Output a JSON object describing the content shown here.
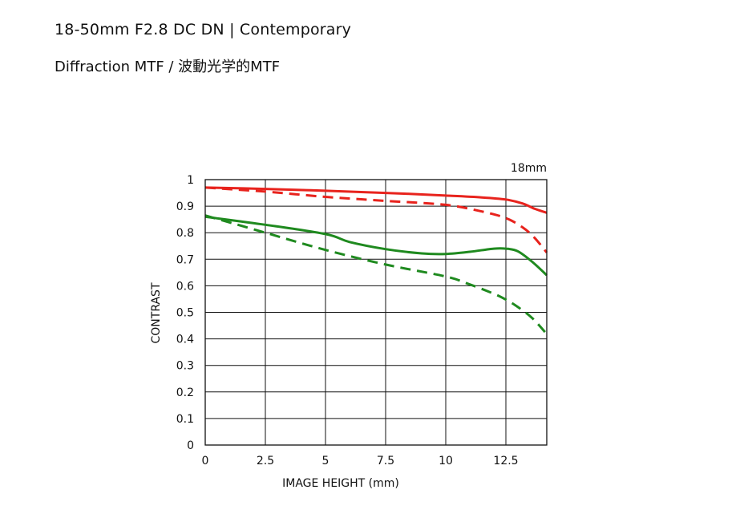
{
  "header": {
    "title": "18-50mm F2.8 DC DN | Contemporary",
    "subtitle": "Diffraction MTF / 波動光学的MTF"
  },
  "chart_data": {
    "type": "line",
    "focal_length_label": "18mm",
    "xlabel": "IMAGE HEIGHT (mm)",
    "ylabel": "CONTRAST",
    "xlim": [
      0,
      14.2
    ],
    "ylim": [
      0,
      1
    ],
    "x_ticks": [
      0,
      2.5,
      5,
      7.5,
      10,
      12.5
    ],
    "x_tick_labels": [
      "0",
      "2.5",
      "5",
      "7.5",
      "10",
      "12.5"
    ],
    "y_ticks": [
      0,
      0.1,
      0.2,
      0.3,
      0.4,
      0.5,
      0.6,
      0.7,
      0.8,
      0.9,
      1
    ],
    "y_tick_labels": [
      "0",
      "0.1",
      "0.2",
      "0.3",
      "0.4",
      "0.5",
      "0.6",
      "0.7",
      "0.8",
      "0.9",
      "1"
    ],
    "grid": true,
    "series": [
      {
        "color": "#e8231d",
        "style": "solid",
        "x": [
          0,
          2.5,
          5,
          7.5,
          10,
          11.5,
          12.5,
          13.2,
          13.7,
          14.2
        ],
        "y": [
          0.97,
          0.965,
          0.958,
          0.95,
          0.94,
          0.933,
          0.925,
          0.91,
          0.89,
          0.875
        ]
      },
      {
        "color": "#e8231d",
        "style": "dashed",
        "x": [
          0,
          2.5,
          5,
          7.5,
          10,
          11.5,
          12.5,
          13.2,
          13.7,
          14.2
        ],
        "y": [
          0.97,
          0.955,
          0.935,
          0.92,
          0.905,
          0.88,
          0.855,
          0.82,
          0.78,
          0.725
        ]
      },
      {
        "color": "#1f8a1f",
        "style": "solid",
        "x": [
          0,
          2.5,
          5,
          6,
          7.5,
          9,
          10,
          11,
          12,
          12.5,
          13,
          13.6,
          14.2
        ],
        "y": [
          0.86,
          0.83,
          0.795,
          0.765,
          0.738,
          0.722,
          0.72,
          0.728,
          0.74,
          0.74,
          0.73,
          0.69,
          0.64
        ]
      },
      {
        "color": "#1f8a1f",
        "style": "dashed",
        "x": [
          0,
          2.5,
          5,
          7.5,
          10,
          11,
          12,
          12.5,
          13,
          13.6,
          14.2
        ],
        "y": [
          0.865,
          0.8,
          0.735,
          0.68,
          0.635,
          0.605,
          0.57,
          0.548,
          0.52,
          0.478,
          0.418
        ]
      }
    ]
  }
}
